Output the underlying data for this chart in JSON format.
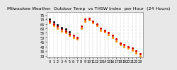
{
  "title": "Milwaukee Weather  Outdoor Temp  vs THSW Index  per Hour  (24 Hours)",
  "bg_color": "#e8e8e8",
  "plot_bg_color": "#ffffff",
  "grid_color": "#aaaaaa",
  "x_labels": [
    "0",
    "1",
    "2",
    "3",
    "4",
    "5",
    "6",
    "7",
    "8",
    "9",
    "10",
    "11",
    "12",
    "13",
    "14",
    "15",
    "16",
    "17",
    "18",
    "19",
    "20",
    "21",
    "22",
    "23"
  ],
  "ylim": [
    28,
    78
  ],
  "ytick_vals": [
    30,
    35,
    40,
    45,
    50,
    55,
    60,
    65,
    70,
    75
  ],
  "ytick_labels": [
    "30",
    "35",
    "40",
    "45",
    "50",
    "55",
    "60",
    "65",
    "70",
    "75"
  ],
  "outdoor_temp": [
    68,
    65,
    62,
    59,
    57,
    54,
    52,
    50,
    62,
    70,
    71,
    68,
    65,
    60,
    58,
    55,
    52,
    48,
    44,
    42,
    40,
    38,
    35,
    32
  ],
  "thsw_index": [
    66,
    63,
    60,
    57,
    55,
    52,
    50,
    48,
    60,
    68,
    69,
    66,
    63,
    58,
    56,
    53,
    50,
    46,
    42,
    40,
    38,
    36,
    33,
    30
  ],
  "black_dots": [
    70,
    67,
    64,
    61,
    59,
    56,
    null,
    null,
    null,
    null,
    null,
    null,
    null,
    null,
    null,
    null,
    null,
    null,
    null,
    null,
    null,
    null,
    null,
    null
  ],
  "temp_color": "#cc0000",
  "thsw_color": "#ff8800",
  "black_color": "#111111",
  "dot_size": 5,
  "title_fontsize": 4.5,
  "tick_fontsize": 3.5,
  "grid_vertical_hours": [
    0,
    1,
    2,
    3,
    4,
    5,
    6,
    7,
    8,
    9,
    10,
    11,
    12,
    13,
    14,
    15,
    16,
    17,
    18,
    19,
    20,
    21,
    22,
    23
  ]
}
